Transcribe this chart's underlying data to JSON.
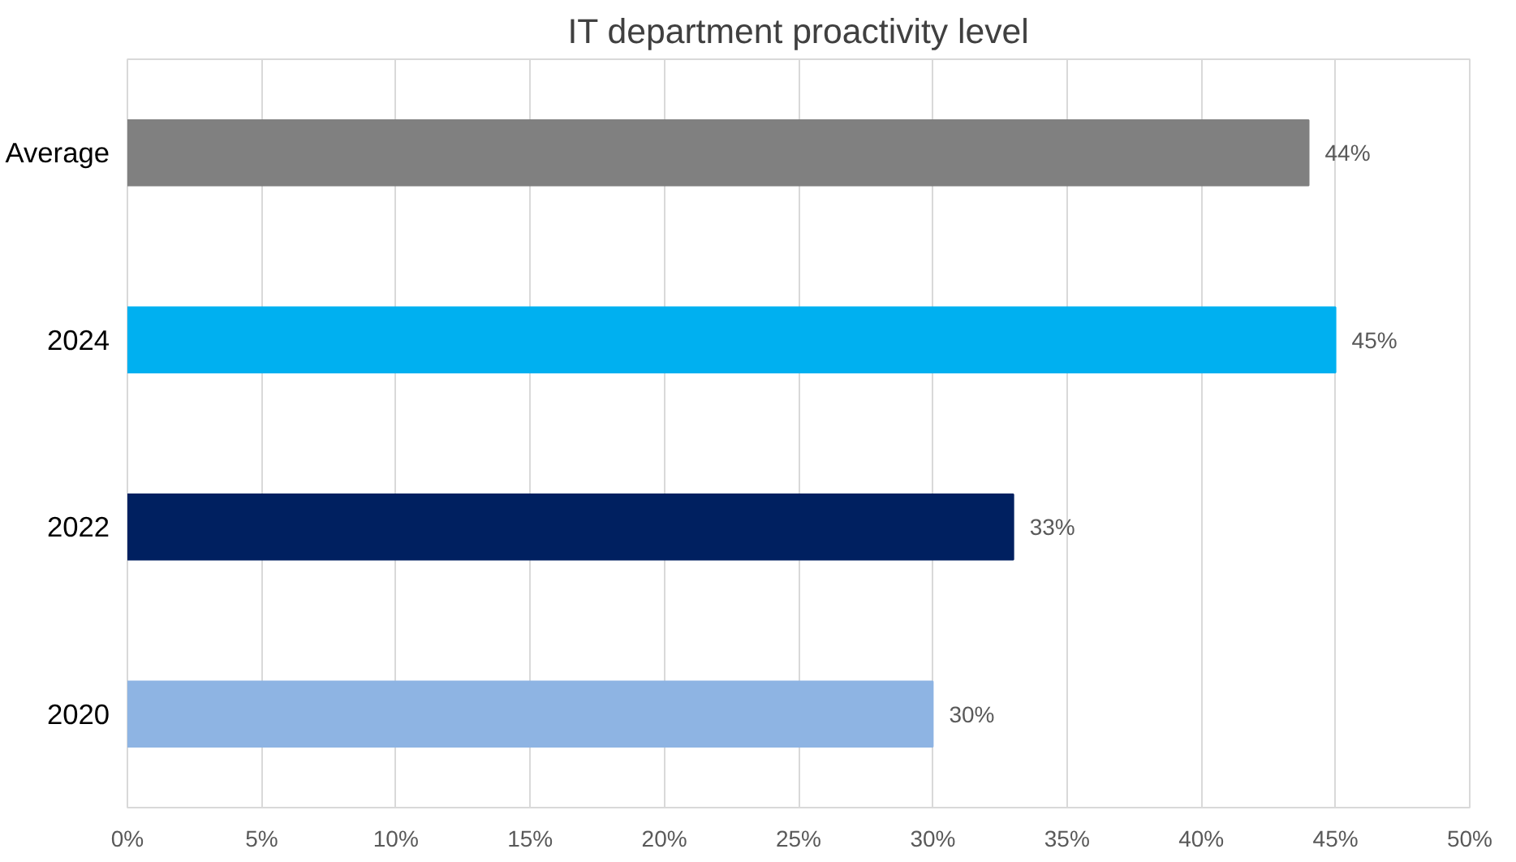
{
  "chart_data": {
    "type": "bar",
    "orientation": "horizontal",
    "title": "IT department proactivity level",
    "categories": [
      "Average",
      "2024",
      "2022",
      "2020"
    ],
    "values": [
      44,
      45,
      33,
      30
    ],
    "colors": [
      "#808080",
      "#00b0f0",
      "#002060",
      "#8eb4e3"
    ],
    "value_labels": [
      "44%",
      "45%",
      "33%",
      "30%"
    ],
    "xlim": [
      0,
      50
    ],
    "xticks": [
      {
        "value": 0,
        "label": "0%"
      },
      {
        "value": 5,
        "label": "5%"
      },
      {
        "value": 10,
        "label": "10%"
      },
      {
        "value": 15,
        "label": "15%"
      },
      {
        "value": 20,
        "label": "20%"
      },
      {
        "value": 25,
        "label": "25%"
      },
      {
        "value": 30,
        "label": "30%"
      },
      {
        "value": 35,
        "label": "35%"
      },
      {
        "value": 40,
        "label": "40%"
      },
      {
        "value": 45,
        "label": "45%"
      },
      {
        "value": 50,
        "label": "50%"
      }
    ],
    "grid": "x"
  }
}
